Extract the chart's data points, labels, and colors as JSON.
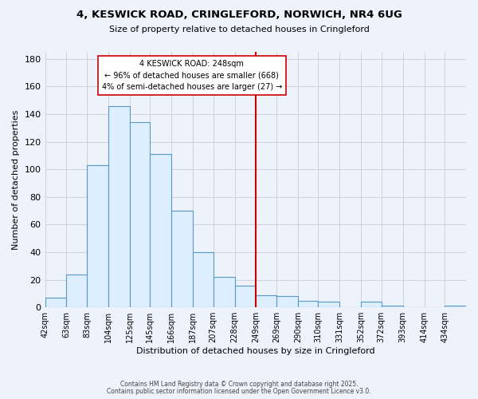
{
  "title": "4, KESWICK ROAD, CRINGLEFORD, NORWICH, NR4 6UG",
  "subtitle": "Size of property relative to detached houses in Cringleford",
  "xlabel": "Distribution of detached houses by size in Cringleford",
  "ylabel": "Number of detached properties",
  "bin_edges": [
    42,
    63,
    83,
    104,
    125,
    145,
    166,
    187,
    207,
    228,
    249,
    269,
    290,
    310,
    331,
    352,
    372,
    393,
    414,
    434,
    455
  ],
  "bin_counts": [
    7,
    24,
    103,
    146,
    134,
    111,
    70,
    40,
    22,
    16,
    9,
    8,
    5,
    4,
    0,
    4,
    1,
    0,
    0,
    1
  ],
  "bar_facecolor": "#ddeeff",
  "bar_edgecolor": "#5599cc",
  "vline_x": 249,
  "vline_color": "#cc0000",
  "annotation_title": "4 KESWICK ROAD: 248sqm",
  "annotation_line1": "← 96% of detached houses are smaller (668)",
  "annotation_line2": "4% of semi-detached houses are larger (27) →",
  "annotation_box_facecolor": "#ffffff",
  "annotation_box_edgecolor": "#cc0000",
  "ylim": [
    0,
    185
  ],
  "yticks": [
    0,
    20,
    40,
    60,
    80,
    100,
    120,
    140,
    160,
    180
  ],
  "grid_color": "#cccccc",
  "background_color": "#eef2fb",
  "footer1": "Contains HM Land Registry data © Crown copyright and database right 2025.",
  "footer2": "Contains public sector information licensed under the Open Government Licence v3.0."
}
